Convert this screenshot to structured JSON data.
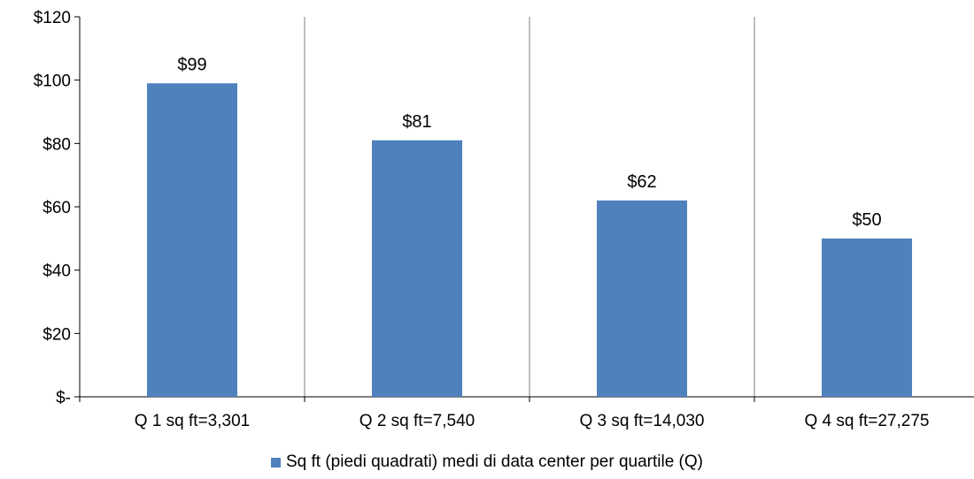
{
  "chart_data": {
    "type": "bar",
    "categories": [
      "Q 1 sq ft=3,301",
      "Q 2 sq ft=7,540",
      "Q 3 sq ft=14,030",
      "Q 4 sq ft=27,275"
    ],
    "series": [
      {
        "name": "Sq ft (piedi quadrati) medi di data center per quartile (Q)",
        "values": [
          99,
          81,
          62,
          50
        ],
        "data_labels": [
          "$99",
          "$81",
          "$62",
          "$50"
        ],
        "color": "#4f81bd"
      }
    ],
    "title": "",
    "xlabel": "",
    "ylabel": "",
    "ylim": [
      0,
      120
    ],
    "yticks": [
      0,
      20,
      40,
      60,
      80,
      100,
      120
    ],
    "ytick_labels": [
      "$-",
      "$20",
      "$40",
      "$60",
      "$80",
      "$100",
      "$120"
    ],
    "grid": false,
    "category_separators": true,
    "legend_position": "bottom"
  },
  "legend": {
    "label": "Sq ft (piedi quadrati) medi di data center per quartile (Q)",
    "color": "#4f81bd"
  }
}
